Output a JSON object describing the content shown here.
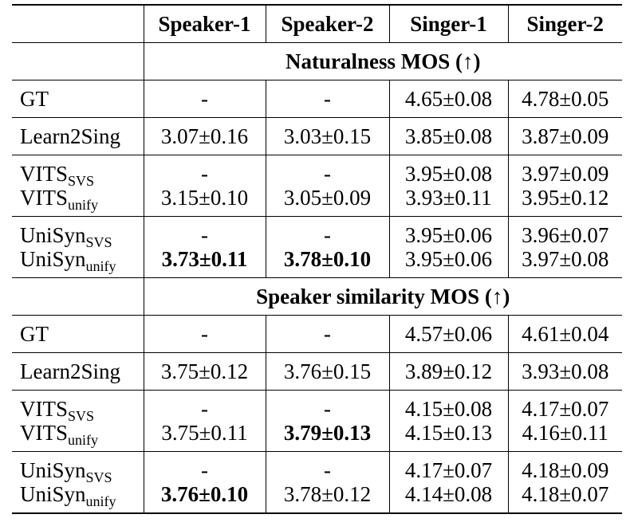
{
  "table": {
    "columns": [
      "Speaker-1",
      "Speaker-2",
      "Singer-1",
      "Singer-2"
    ],
    "sections": [
      {
        "title": "Naturalness MOS (↑)",
        "groups": [
          {
            "rows": [
              {
                "name": "GT",
                "cells": [
                  "-",
                  "-",
                  "4.65±0.08",
                  "4.78±0.05"
                ]
              }
            ]
          },
          {
            "rows": [
              {
                "name": "Learn2Sing",
                "cells": [
                  "3.07±0.16",
                  "3.03±0.15",
                  "3.85±0.08",
                  "3.87±0.09"
                ]
              }
            ]
          },
          {
            "rows": [
              {
                "name": "VITS",
                "name_sub": "SVS",
                "cells": [
                  "-",
                  "-",
                  "3.95±0.08",
                  "3.97±0.09"
                ]
              },
              {
                "name": "VITS",
                "name_sub": "unify",
                "cells": [
                  "3.15±0.10",
                  "3.05±0.09",
                  "3.93±0.11",
                  "3.95±0.12"
                ]
              }
            ]
          },
          {
            "rows": [
              {
                "name": "UniSyn",
                "name_sub": "SVS",
                "cells": [
                  "-",
                  "-",
                  "3.95±0.06",
                  "3.96±0.07"
                ]
              },
              {
                "name": "UniSyn",
                "name_sub": "unify",
                "cells": [
                  "3.73±0.11",
                  "3.78±0.10",
                  "3.95±0.06",
                  "3.97±0.08"
                ],
                "bold": [
                  0,
                  1
                ]
              }
            ]
          }
        ]
      },
      {
        "title": "Speaker similarity MOS (↑)",
        "groups": [
          {
            "rows": [
              {
                "name": "GT",
                "cells": [
                  "-",
                  "-",
                  "4.57±0.06",
                  "4.61±0.04"
                ]
              }
            ]
          },
          {
            "rows": [
              {
                "name": "Learn2Sing",
                "cells": [
                  "3.75±0.12",
                  "3.76±0.15",
                  "3.89±0.12",
                  "3.93±0.08"
                ]
              }
            ]
          },
          {
            "rows": [
              {
                "name": "VITS",
                "name_sub": "SVS",
                "cells": [
                  "-",
                  "-",
                  "4.15±0.08",
                  "4.17±0.07"
                ]
              },
              {
                "name": "VITS",
                "name_sub": "unify",
                "cells": [
                  "3.75±0.11",
                  "3.79±0.13",
                  "4.15±0.13",
                  "4.16±0.11"
                ],
                "bold": [
                  1
                ]
              }
            ]
          },
          {
            "rows": [
              {
                "name": "UniSyn",
                "name_sub": "SVS",
                "cells": [
                  "-",
                  "-",
                  "4.17±0.07",
                  "4.18±0.09"
                ]
              },
              {
                "name": "UniSyn",
                "name_sub": "unify",
                "cells": [
                  "3.76±0.10",
                  "3.78±0.12",
                  "4.14±0.08",
                  "4.18±0.07"
                ],
                "bold": [
                  0
                ]
              }
            ]
          }
        ]
      }
    ]
  }
}
